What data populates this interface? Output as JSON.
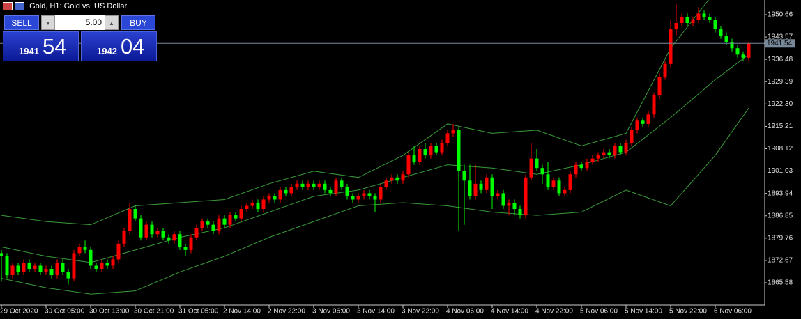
{
  "chart_data": {
    "type": "candlestick",
    "title": "Gold, H1:  Gold vs. US Dollar",
    "categories": [
      "29 Oct 2020",
      null,
      null,
      null,
      null,
      null,
      null,
      null,
      "30 Oct 05:00",
      null,
      null,
      null,
      null,
      null,
      null,
      null,
      "30 Oct 13:00",
      null,
      null,
      null,
      null,
      null,
      null,
      null,
      "30 Oct 21:00",
      null,
      null,
      null,
      null,
      null,
      null,
      null,
      "31 Oct 05:00",
      null,
      null,
      null,
      null,
      null,
      null,
      null,
      "2 Nov 14:00",
      null,
      null,
      null,
      null,
      null,
      null,
      null,
      "2 Nov 22:00",
      null,
      null,
      null,
      null,
      null,
      null,
      null,
      "3 Nov 06:00",
      null,
      null,
      null,
      null,
      null,
      null,
      null,
      "3 Nov 14:00",
      null,
      null,
      null,
      null,
      null,
      null,
      null,
      "3 Nov 22:00",
      null,
      null,
      null,
      null,
      null,
      null,
      null,
      "4 Nov 06:00",
      null,
      null,
      null,
      null,
      null,
      null,
      null,
      "4 Nov 14:00",
      null,
      null,
      null,
      null,
      null,
      null,
      null,
      "4 Nov 22:00",
      null,
      null,
      null,
      null,
      null,
      null,
      null,
      "5 Nov 06:00",
      null,
      null,
      null,
      null,
      null,
      null,
      null,
      "5 Nov 14:00",
      null,
      null,
      null,
      null,
      null,
      null,
      null,
      "5 Nov 22:00",
      null,
      null,
      null,
      null,
      null,
      null,
      null,
      "6 Nov 06:00",
      null,
      null,
      null,
      null,
      null,
      null
    ],
    "open": [
      1875,
      1874,
      1868,
      1871,
      1869,
      1872,
      1870,
      1871,
      1869,
      1870,
      1868,
      1872,
      1869,
      1867,
      1875,
      1877,
      1876,
      1871,
      1870,
      1872,
      1871,
      1873,
      1878,
      1882,
      1889,
      1886,
      1880,
      1884,
      1881,
      1882,
      1880,
      1879,
      1881,
      1877,
      1876,
      1880,
      1883,
      1885,
      1884,
      1882,
      1886,
      1884,
      1887,
      1886,
      1889,
      1890,
      1891,
      1889,
      1892,
      1893,
      1892,
      1895,
      1894,
      1896,
      1897,
      1896,
      1897,
      1896,
      1897,
      1895,
      1894,
      1898,
      1896,
      1893,
      1892,
      1893,
      1894,
      1893,
      1892,
      1896,
      1898,
      1899,
      1898,
      1900,
      1906,
      1904,
      1908,
      1906,
      1909,
      1907,
      1910,
      1913,
      1914,
      1901,
      1898,
      1893,
      1897,
      1895,
      1899,
      1893,
      1894,
      1890,
      1891,
      1889,
      1887,
      1899,
      1905,
      1902,
      1900,
      1896,
      1898,
      1894,
      1895,
      1900,
      1903,
      1902,
      1904,
      1905,
      1906,
      1907,
      1906,
      1909,
      1907,
      1910,
      1914,
      1917,
      1916,
      1919,
      1925,
      1931,
      1935,
      1946,
      1948,
      1950,
      1948,
      1949,
      1951,
      1950,
      1949,
      1946,
      1944,
      1942,
      1940,
      1938,
      1937
    ],
    "high": [
      1876,
      1875,
      1872,
      1872,
      1873,
      1873,
      1872,
      1872,
      1871,
      1871,
      1873,
      1873,
      1870,
      1876,
      1878,
      1879,
      1877,
      1872,
      1873,
      1873,
      1874,
      1879,
      1883,
      1891,
      1890,
      1887,
      1885,
      1885,
      1883,
      1883,
      1881,
      1882,
      1882,
      1878,
      1881,
      1884,
      1886,
      1886,
      1885,
      1887,
      1887,
      1888,
      1888,
      1890,
      1891,
      1892,
      1892,
      1893,
      1894,
      1894,
      1896,
      1896,
      1897,
      1898,
      1898,
      1898,
      1898,
      1898,
      1898,
      1896,
      1899,
      1899,
      1897,
      1894,
      1894,
      1895,
      1895,
      1894,
      1897,
      1899,
      1900,
      1900,
      1901,
      1907,
      1909,
      1909,
      1910,
      1910,
      1910,
      1911,
      1914,
      1916,
      1915,
      1903,
      1903,
      1903,
      1898,
      1900,
      1900,
      1895,
      1895,
      1892,
      1892,
      1890,
      1900,
      1910,
      1908,
      1903,
      1904,
      1899,
      1899,
      1896,
      1901,
      1904,
      1904,
      1905,
      1906,
      1907,
      1908,
      1908,
      1910,
      1910,
      1911,
      1915,
      1918,
      1918,
      1920,
      1926,
      1932,
      1936,
      1949,
      1954,
      1951,
      1951,
      1950,
      1953,
      1952,
      1951,
      1950,
      1947,
      1945,
      1943,
      1941,
      1939,
      1942
    ],
    "low": [
      1866,
      1867,
      1867,
      1868,
      1868,
      1869,
      1869,
      1868,
      1868,
      1867,
      1867,
      1868,
      1865,
      1866,
      1874,
      1875,
      1870,
      1869,
      1869,
      1870,
      1870,
      1872,
      1877,
      1881,
      1885,
      1879,
      1879,
      1880,
      1880,
      1879,
      1878,
      1878,
      1876,
      1874,
      1875,
      1879,
      1882,
      1883,
      1881,
      1881,
      1883,
      1883,
      1885,
      1885,
      1888,
      1889,
      1888,
      1888,
      1891,
      1891,
      1891,
      1893,
      1893,
      1895,
      1895,
      1895,
      1895,
      1895,
      1894,
      1893,
      1893,
      1895,
      1892,
      1891,
      1891,
      1892,
      1892,
      1888,
      1891,
      1895,
      1897,
      1897,
      1897,
      1899,
      1903,
      1903,
      1905,
      1905,
      1906,
      1906,
      1909,
      1912,
      1882,
      1884,
      1892,
      1892,
      1894,
      1894,
      1889,
      1892,
      1889,
      1887,
      1887,
      1886,
      1886,
      1898,
      1901,
      1897,
      1895,
      1895,
      1893,
      1893,
      1894,
      1899,
      1901,
      1901,
      1903,
      1904,
      1905,
      1905,
      1905,
      1906,
      1906,
      1909,
      1913,
      1915,
      1915,
      1918,
      1924,
      1930,
      1934,
      1944,
      1947,
      1947,
      1947,
      1948,
      1949,
      1948,
      1945,
      1943,
      1941,
      1939,
      1937,
      1936,
      1936
    ],
    "close": [
      1874,
      1868,
      1871,
      1869,
      1872,
      1870,
      1871,
      1869,
      1870,
      1868,
      1872,
      1869,
      1867,
      1875,
      1877,
      1876,
      1871,
      1870,
      1872,
      1871,
      1873,
      1878,
      1882,
      1889,
      1886,
      1880,
      1884,
      1881,
      1882,
      1880,
      1879,
      1881,
      1877,
      1876,
      1880,
      1883,
      1885,
      1884,
      1882,
      1886,
      1884,
      1887,
      1886,
      1889,
      1890,
      1891,
      1889,
      1892,
      1893,
      1892,
      1895,
      1894,
      1896,
      1897,
      1896,
      1897,
      1896,
      1897,
      1895,
      1894,
      1898,
      1896,
      1893,
      1892,
      1893,
      1894,
      1893,
      1892,
      1896,
      1898,
      1899,
      1898,
      1900,
      1906,
      1904,
      1908,
      1906,
      1909,
      1907,
      1910,
      1913,
      1914,
      1901,
      1898,
      1893,
      1897,
      1895,
      1899,
      1893,
      1894,
      1890,
      1891,
      1889,
      1887,
      1899,
      1905,
      1902,
      1900,
      1896,
      1898,
      1894,
      1895,
      1900,
      1903,
      1902,
      1904,
      1905,
      1906,
      1907,
      1906,
      1909,
      1907,
      1910,
      1914,
      1917,
      1916,
      1919,
      1925,
      1931,
      1935,
      1946,
      1948,
      1950,
      1948,
      1949,
      1951,
      1950,
      1949,
      1946,
      1944,
      1942,
      1940,
      1938,
      1937,
      1941.54
    ],
    "up_color": "#ff0000",
    "down_color": "#00ff00",
    "bands": [
      {
        "color": "#3a9a3a",
        "x": [
          0,
          8,
          16,
          24,
          32,
          40,
          48,
          56,
          64,
          72,
          80,
          88,
          96,
          104,
          112,
          120,
          128,
          134
        ],
        "values": [
          1887,
          1885,
          1884,
          1890,
          1891,
          1892,
          1897,
          1901,
          1899,
          1906,
          1916,
          1913,
          1914,
          1909,
          1913,
          1940,
          1958,
          1960
        ]
      },
      {
        "color": "#3a9a3a",
        "x": [
          0,
          8,
          16,
          24,
          32,
          40,
          48,
          56,
          64,
          72,
          80,
          88,
          96,
          104,
          112,
          120,
          128,
          134
        ],
        "values": [
          1877,
          1874,
          1872,
          1876,
          1880,
          1883,
          1888,
          1893,
          1895,
          1899,
          1903,
          1902,
          1900,
          1903,
          1907,
          1918,
          1930,
          1938
        ]
      },
      {
        "color": "#3a9a3a",
        "x": [
          0,
          8,
          16,
          24,
          32,
          40,
          48,
          56,
          64,
          72,
          80,
          88,
          96,
          104,
          112,
          120,
          128,
          134
        ],
        "values": [
          1867,
          1864,
          1862,
          1863,
          1869,
          1874,
          1880,
          1885,
          1890,
          1891,
          1890,
          1888,
          1887,
          1888,
          1895,
          1890,
          1906,
          1921
        ]
      }
    ],
    "ylim": [
      1858.51,
      1955.3
    ],
    "yticks": [
      {
        "value": 1865.58,
        "label": "1865.58"
      },
      1872.67,
      1879.76,
      1886.85,
      1893.94,
      1901.03,
      1908.12,
      1915.21,
      {
        "value": 1922.3,
        "label": "1922.30"
      },
      1929.39,
      1936.48,
      1943.57,
      1950.66
    ],
    "price_line": 1941.54,
    "price_line_color": "#778899"
  },
  "trade_panel": {
    "sell": "SELL",
    "buy": "BUY",
    "lot": "5.00",
    "sell_big": "1941",
    "sell_small": "54",
    "buy_big": "1942",
    "buy_small": "04"
  }
}
